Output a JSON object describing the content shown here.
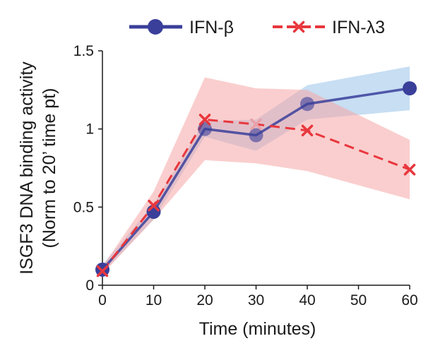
{
  "chart_data": {
    "type": "line",
    "xlabel": "Time (minutes)",
    "ylabel_lines": [
      "ISGF3 DNA binding activity",
      "(Norm to 20’ time pt)"
    ],
    "xlim": [
      0,
      60
    ],
    "ylim": [
      0,
      1.5
    ],
    "x_ticks": [
      0,
      10,
      20,
      30,
      40,
      50,
      60
    ],
    "y_ticks": [
      0,
      0.5,
      1,
      1.5
    ],
    "y_tick_labels": [
      "0",
      "0.5",
      "1",
      "1.5"
    ],
    "grid": false,
    "legend_position": "top",
    "series": [
      {
        "name": "IFN-β",
        "color": "#3a3f9a",
        "band_color": "#a9ccec",
        "marker": "circle",
        "line_style": "solid",
        "x": [
          0,
          10,
          20,
          30,
          40,
          60
        ],
        "y": [
          0.1,
          0.47,
          1.0,
          0.96,
          1.16,
          1.26
        ],
        "y_lower": [
          0.08,
          0.42,
          0.95,
          0.86,
          1.06,
          1.12
        ],
        "y_upper": [
          0.13,
          0.52,
          1.05,
          1.06,
          1.28,
          1.4
        ]
      },
      {
        "name": "IFN-λ3",
        "color": "#e8373d",
        "band_color": "#f5a6a6",
        "marker": "x",
        "line_style": "dashed",
        "x": [
          0,
          10,
          20,
          30,
          40,
          60
        ],
        "y": [
          0.09,
          0.51,
          1.06,
          1.03,
          0.99,
          0.74
        ],
        "y_lower": [
          0.07,
          0.42,
          0.8,
          0.78,
          0.73,
          0.55
        ],
        "y_upper": [
          0.12,
          0.6,
          1.33,
          1.26,
          1.25,
          0.93
        ]
      }
    ]
  }
}
